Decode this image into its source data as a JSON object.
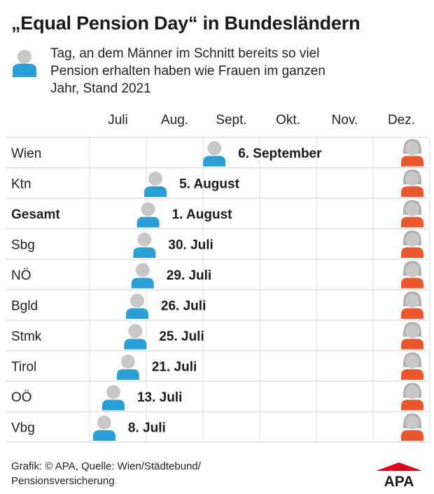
{
  "title": "„Equal Pension Day“ in Bundesländern",
  "subtitle_lines": [
    "Tag, an dem Männer im Schnitt bereits so viel",
    "Pension erhalten haben wie Frauen im ganzen",
    "Jahr, Stand 2021"
  ],
  "footer_lines": [
    "Grafik: © APA, Quelle: Wien/Städtebund/",
    "Pensionsversicherung"
  ],
  "logo_text": "APA",
  "colors": {
    "male": "#2a9fd6",
    "female": "#e8582c",
    "icon_head": "#c8c8c8",
    "grid": "#dcdcdc",
    "logo": "#e2001a"
  },
  "chart_data": {
    "type": "table",
    "months": [
      "Juli",
      "Aug.",
      "Sept.",
      "Okt.",
      "Nov.",
      "Dez."
    ],
    "rows": [
      {
        "label": "Wien",
        "date": "6. September",
        "month": 9,
        "day": 6,
        "bold": false
      },
      {
        "label": "Ktn",
        "date": "5. August",
        "month": 8,
        "day": 5,
        "bold": false
      },
      {
        "label": "Gesamt",
        "date": "1. August",
        "month": 8,
        "day": 1,
        "bold": true
      },
      {
        "label": "Sbg",
        "date": "30. Juli",
        "month": 7,
        "day": 30,
        "bold": false
      },
      {
        "label": "NÖ",
        "date": "29. Juli",
        "month": 7,
        "day": 29,
        "bold": false
      },
      {
        "label": "Bgld",
        "date": "26. Juli",
        "month": 7,
        "day": 26,
        "bold": false
      },
      {
        "label": "Stmk",
        "date": "25. Juli",
        "month": 7,
        "day": 25,
        "bold": false
      },
      {
        "label": "Tirol",
        "date": "21. Juli",
        "month": 7,
        "day": 21,
        "bold": false
      },
      {
        "label": "OÖ",
        "date": "13. Juli",
        "month": 7,
        "day": 13,
        "bold": false
      },
      {
        "label": "Vbg",
        "date": "8. Juli",
        "month": 7,
        "day": 8,
        "bold": false
      }
    ]
  }
}
